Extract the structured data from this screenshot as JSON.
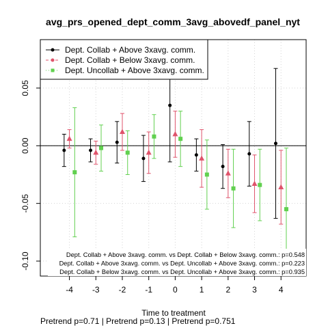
{
  "chart_data": {
    "type": "scatter",
    "title": "avg_prs_opened_dept_comm_3avg_abovedf_panel_nyt",
    "xlabel": "Time to treatment",
    "ylabel": "",
    "x_ticks": [
      -4,
      -3,
      -2,
      -1,
      0,
      1,
      2,
      3,
      4
    ],
    "y_ticks": [
      -0.1,
      -0.05,
      0.0,
      0.05
    ],
    "y_tick_labels": [
      "-0.10",
      "-0.05",
      "0.00",
      "0.05"
    ],
    "xlim": [
      -5.1,
      4.95
    ],
    "ylim": [
      -0.113,
      0.092
    ],
    "grid": true,
    "legend_position": "top-left",
    "reference_line": 0,
    "series": [
      {
        "name": "Dept. Collab + Above 3xavg. comm.",
        "color": "#000000",
        "marker": "circle",
        "offset": -0.2,
        "values": [
          -0.004,
          -0.004,
          0.003,
          -0.011,
          0.035,
          -0.008,
          -0.018,
          -0.007,
          0.002
        ],
        "lower": [
          -0.018,
          -0.014,
          -0.015,
          -0.031,
          -0.014,
          -0.022,
          -0.037,
          -0.035,
          -0.063
        ],
        "upper": [
          0.01,
          0.006,
          0.021,
          0.009,
          0.084,
          0.006,
          0.001,
          0.021,
          0.067
        ]
      },
      {
        "name": "Dept. Collab + Below 3xavg. comm.",
        "color": "#DF536B",
        "marker": "triangle",
        "offset": 0,
        "values": [
          0.006,
          -0.006,
          0.012,
          -0.006,
          0.01,
          -0.011,
          -0.024,
          -0.033,
          -0.036
        ],
        "lower": [
          -0.002,
          -0.016,
          -0.004,
          -0.024,
          -0.01,
          -0.036,
          -0.045,
          -0.058,
          -0.068
        ],
        "upper": [
          0.014,
          0.004,
          0.028,
          0.012,
          0.03,
          0.014,
          -0.003,
          -0.008,
          -0.004
        ]
      },
      {
        "name": "Dept. Uncollab + Above 3xavg. comm.",
        "color": "#61D04F",
        "marker": "square",
        "offset": 0.2,
        "values": [
          -0.023,
          -0.002,
          -0.006,
          0.008,
          0.006,
          -0.025,
          -0.037,
          -0.034,
          -0.055
        ],
        "lower": [
          -0.079,
          -0.022,
          -0.025,
          -0.011,
          -0.018,
          -0.055,
          -0.071,
          -0.065,
          -0.108
        ],
        "upper": [
          0.033,
          0.018,
          0.013,
          0.027,
          0.03,
          0.005,
          -0.003,
          -0.003,
          -0.002
        ]
      }
    ],
    "annotations": [
      "Dept. Collab + Above 3xavg. comm. vs Dept. Collab + Below 3xavg. comm.: p=0.548",
      "Dept. Collab + Above 3xavg. comm. vs Dept. Uncollab + Above 3xavg. comm.: p=0.223",
      "Dept. Collab + Below 3xavg. comm. vs Dept. Uncollab + Above 3xavg. comm.: p=0.935"
    ],
    "footer": "Pretrend p=0.71 | Pretrend p=0.13 | Pretrend p=0.751"
  }
}
